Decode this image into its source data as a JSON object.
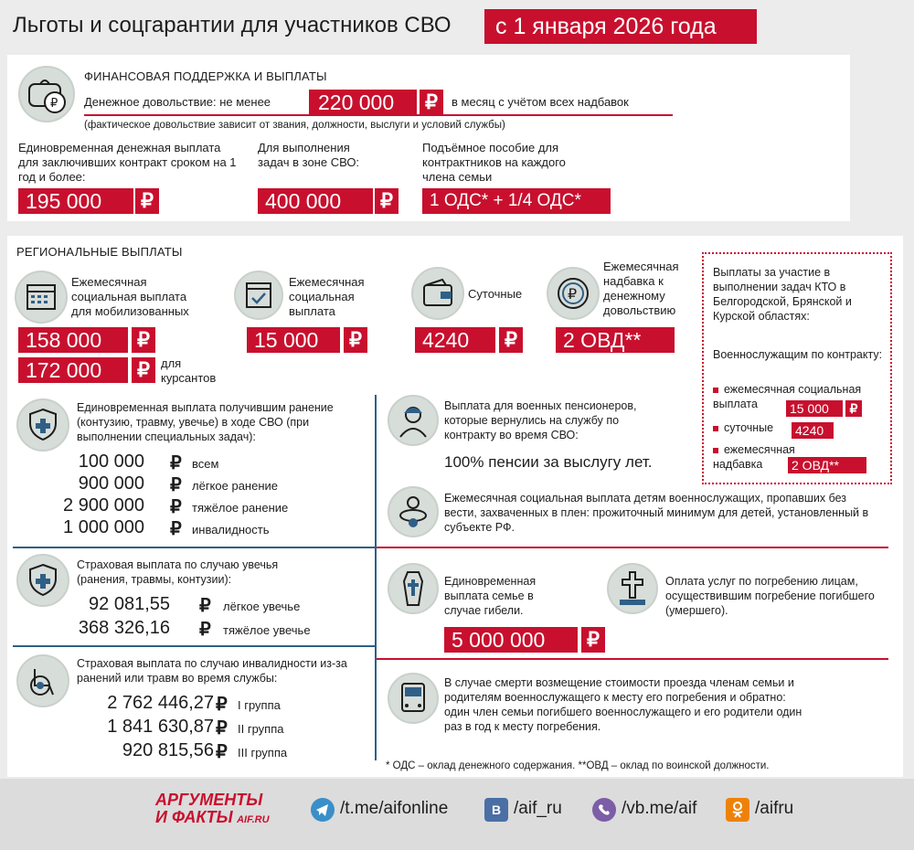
{
  "header": {
    "title": "Льготы и соцгарантии для участников СВО",
    "date_badge": "с 1 января 2026 года"
  },
  "financial": {
    "heading": "ФИНАНСОВАЯ ПОДДЕРЖКА И ВЫПЛАТЫ",
    "allowance_label": "Денежное довольствие: не менее",
    "allowance_value": "220 000",
    "allowance_suffix": "в месяц с учётом всех надбавок",
    "allowance_note": "(фактическое довольствие зависит от звания, должности, выслуги и условий службы)",
    "lump_label": "Единовременная денежная выплата для заключивших контракт сроком на 1 год и более:",
    "lump_value": "195 000",
    "tasks_label": "Для выполнения задач в зоне СВО:",
    "tasks_value": "400 000",
    "lifting_label": "Подъёмное пособие для контрактников на каждого члена семьи",
    "lifting_value": "1 ОДС* + 1/4 ОДС*"
  },
  "regional": {
    "heading": "РЕГИОНАЛЬНЫЕ ВЫПЛАТЫ",
    "mobilized_label": "Ежемесячная социальная выплата для мобилизованных",
    "mobilized_value": "158 000",
    "cadets_value": "172 000",
    "cadets_label": "для курсантов",
    "monthly_label": "Ежемесячная социальная выплата",
    "monthly_value": "15 000",
    "daily_label": "Суточные",
    "daily_value": "4240",
    "bonus_label": "Ежемесячная надбавка к денежному довольствию",
    "bonus_value": "2 ОВД**"
  },
  "kto": {
    "title": "Выплаты за участие в выполнении задач КТО в Белгородской, Брянской и Курской областях:",
    "subtitle": "Военнослужащим по контракту:",
    "items": [
      {
        "label": "ежемесячная социальная выплата",
        "value": "15 000"
      },
      {
        "label": "суточные",
        "value": "4240"
      },
      {
        "label": "ежемесячная надбавка",
        "value": "2 ОВД**"
      }
    ]
  },
  "injury": {
    "title": "Единовременная выплата получившим ранение (контузию, травму, увечье) в ходе СВО (при выполнении специальных задач):",
    "rows": [
      {
        "amount": "100 000",
        "label": "всем"
      },
      {
        "amount": "900 000",
        "label": "лёгкое ранение"
      },
      {
        "amount": "2 900 000",
        "label": "тяжёлое ранение"
      },
      {
        "amount": "1 000 000",
        "label": "инвалидность"
      }
    ]
  },
  "pensioners": {
    "title": "Выплата для военных пенсионеров, которые вернулись на службу по контракту во время СВО:",
    "value": "100% пенсии за выслугу лет."
  },
  "children": {
    "text": "Ежемесячная социальная выплата детям военнослужащих, пропавших без вести, захваченных в плен: прожиточный минимум для детей, установленный в субъекте РФ."
  },
  "insurance": {
    "title": "Страховая выплата по случаю увечья (ранения, травмы, контузии):",
    "rows": [
      {
        "amount": "92 081,55",
        "label": "лёгкое увечье"
      },
      {
        "amount": "368 326,16",
        "label": "тяжёлое увечье"
      }
    ]
  },
  "death": {
    "label": "Единовременная выплата семье в случае гибели.",
    "value": "5 000 000",
    "funeral": "Оплата услуг по погребению лицам, осуществившим погребение погибшего (умершего)."
  },
  "disability": {
    "title": "Страховая выплата по случаю инвалидности из-за ранений или травм во время службы:",
    "rows": [
      {
        "amount": "2 762 446,27",
        "label": "I группа"
      },
      {
        "amount": "1 841 630,87",
        "label": "II группа"
      },
      {
        "amount": "920 815,56",
        "label": "III группа"
      }
    ]
  },
  "travel": {
    "text": "В случае смерти возмещение стоимости проезда членам семьи и родителям военнослужащего к месту его погребения и обратно: один член семьи погибшего военнослужащего и его родители один раз в год к месту погребения."
  },
  "footnote": "* ОДС – оклад денежного содержания. **ОВД – оклад по воинской должности.",
  "footer": {
    "logo_line1": "АРГУМЕНТЫ",
    "logo_line2": "И ФАКТЫ",
    "logo_domain": "AIF.RU",
    "links": [
      {
        "icon": "telegram-icon",
        "text": "/t.me/aifonline"
      },
      {
        "icon": "vk-icon",
        "text": "/aif_ru"
      },
      {
        "icon": "viber-icon",
        "text": "/vb.me/aif"
      },
      {
        "icon": "ok-icon",
        "text": "/aifru"
      }
    ]
  },
  "currency": "₽",
  "colors": {
    "accent": "#c8102e",
    "line": "#2f5f86",
    "icon_bg": "#d7ddd9"
  }
}
